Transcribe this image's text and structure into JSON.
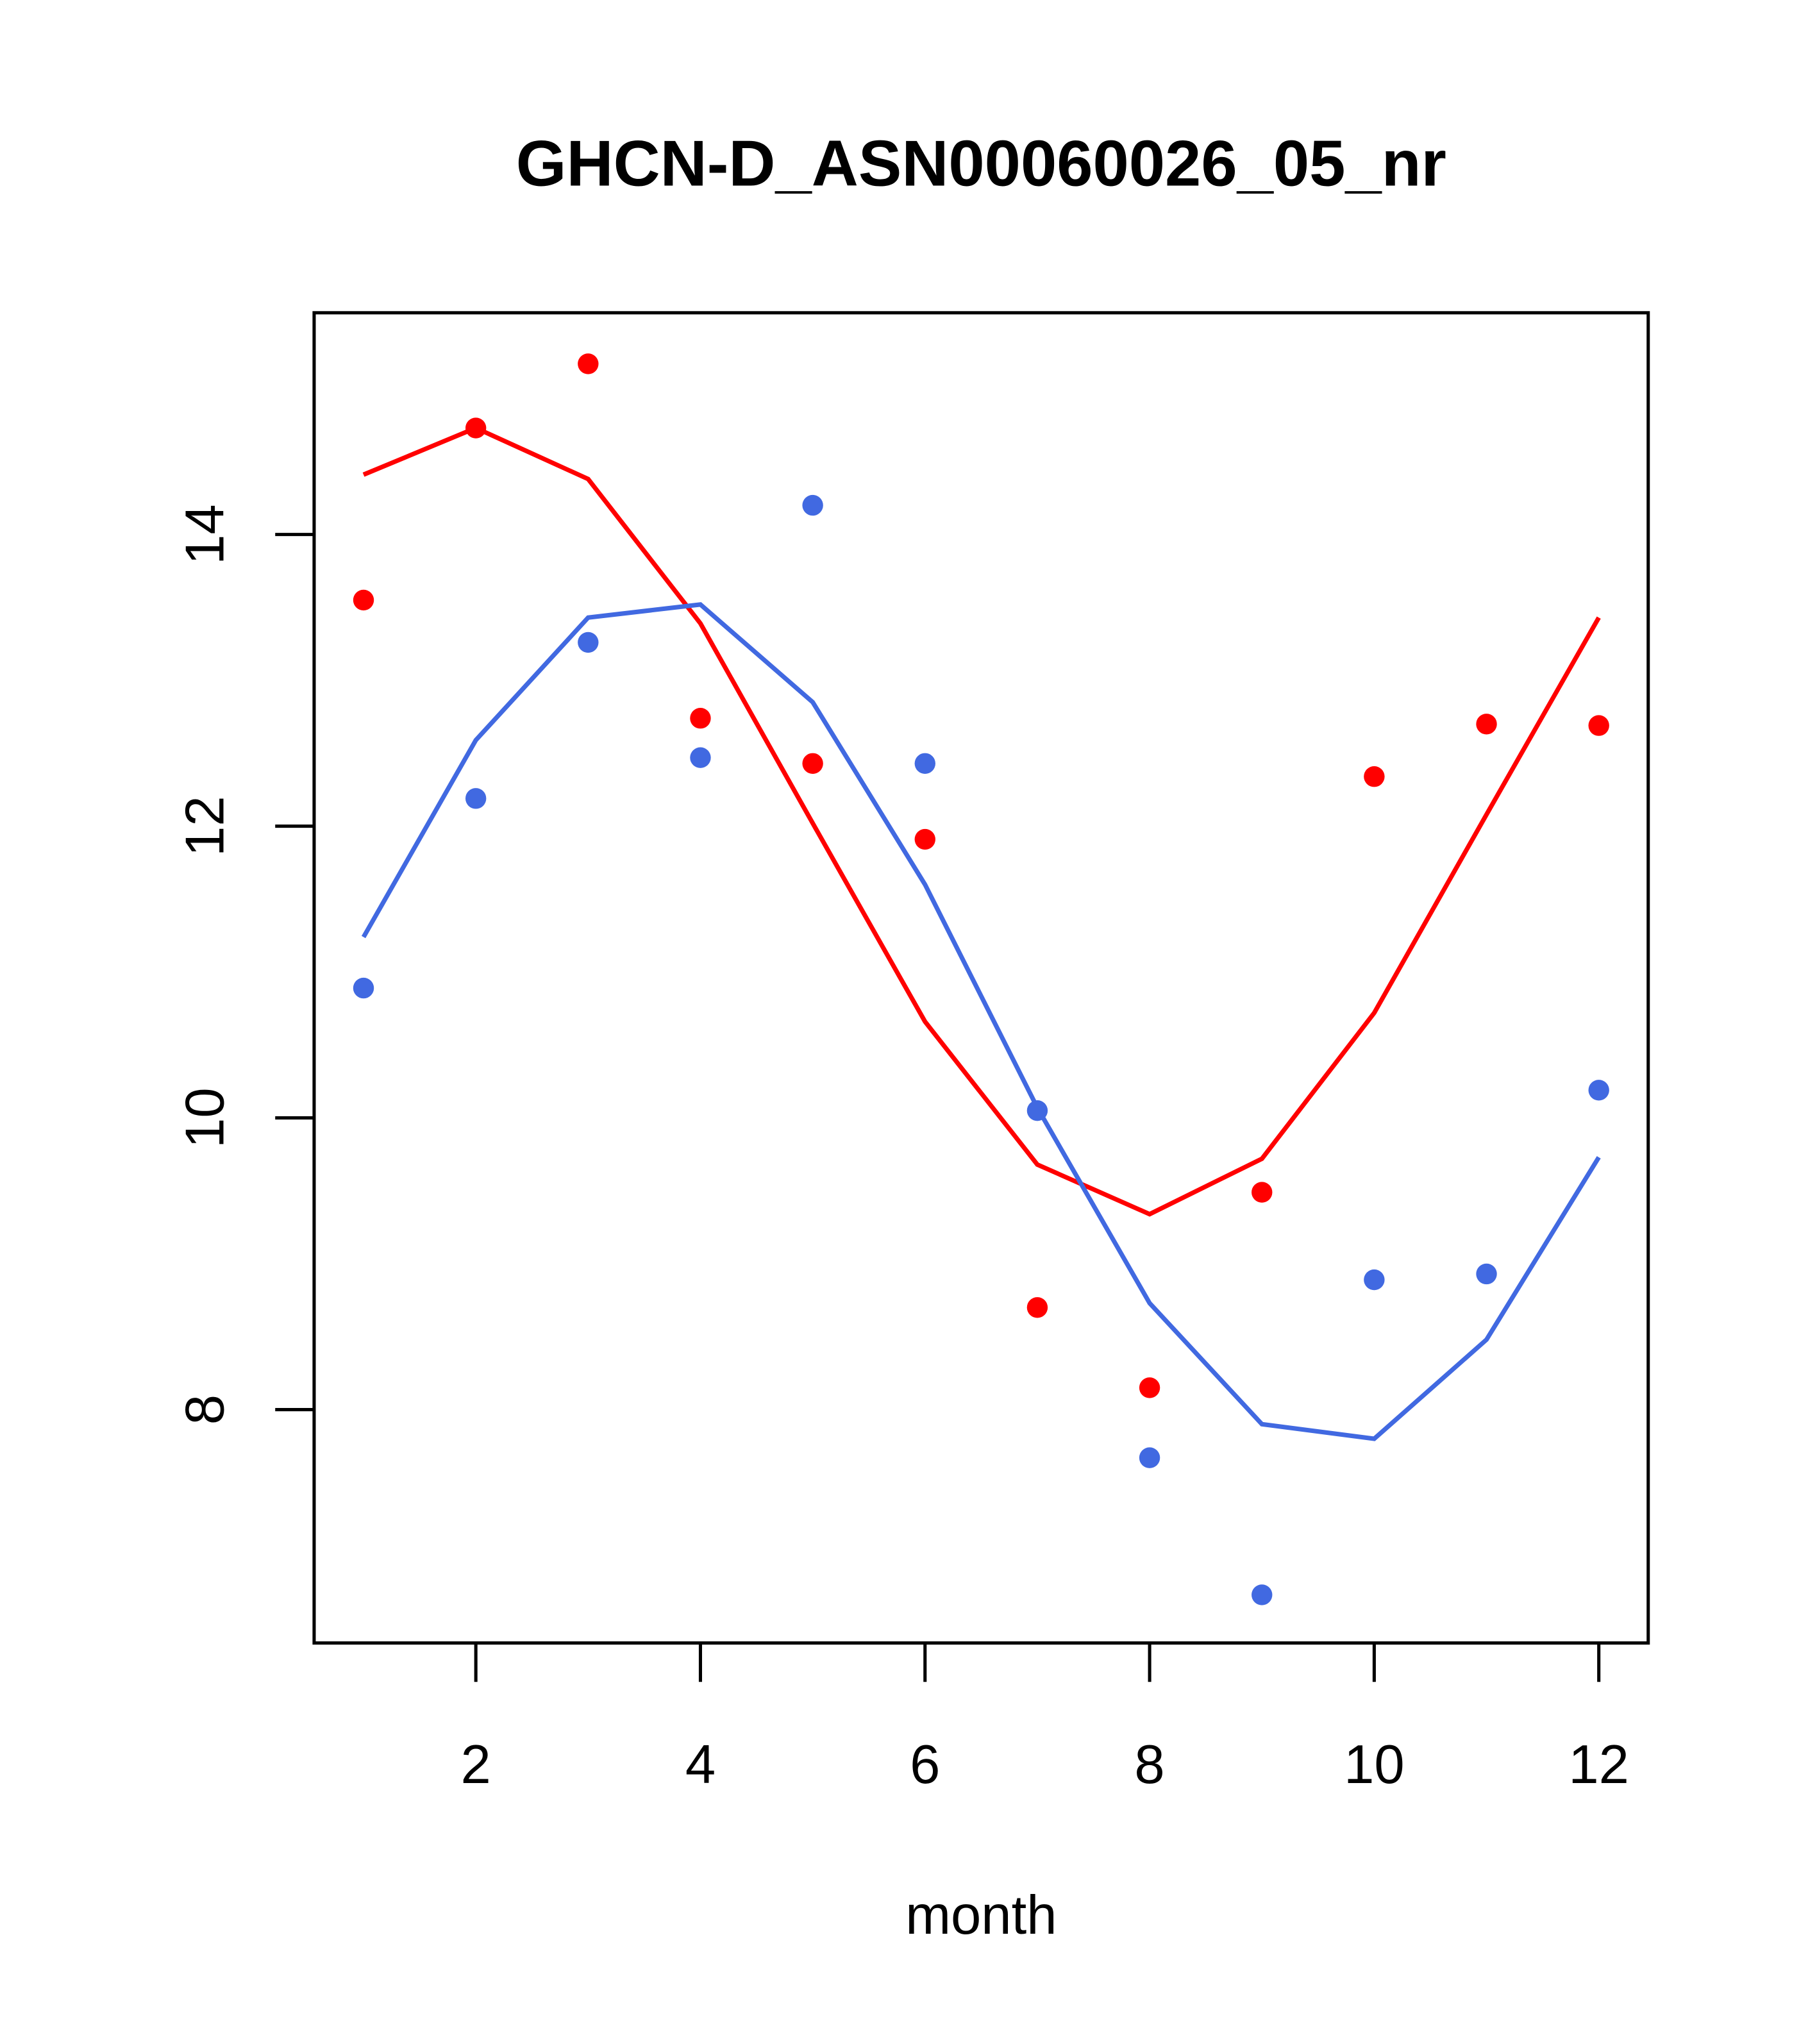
{
  "chart_data": {
    "type": "scatter+line",
    "title": "GHCN-D_ASN00060026_05_nr",
    "xlabel": "month",
    "ylabel": "",
    "xlim": [
      0.56,
      12.44
    ],
    "ylim": [
      6.4,
      15.52
    ],
    "xticks": [
      2,
      4,
      6,
      8,
      10,
      12
    ],
    "yticks": [
      8,
      10,
      12,
      14
    ],
    "grid": false,
    "x": [
      1,
      2,
      3,
      4,
      5,
      6,
      7,
      8,
      9,
      10,
      11,
      12
    ],
    "series": [
      {
        "name": "red points",
        "kind": "points",
        "color": "#ff0000",
        "values": [
          13.55,
          14.73,
          15.17,
          12.74,
          12.43,
          11.91,
          8.7,
          8.15,
          9.49,
          12.34,
          12.7,
          12.69
        ]
      },
      {
        "name": "red line",
        "kind": "line",
        "color": "#ff0000",
        "values": [
          14.41,
          14.73,
          14.38,
          13.39,
          12.02,
          10.66,
          9.68,
          9.34,
          9.72,
          10.72,
          12.08,
          13.43
        ]
      },
      {
        "name": "blue points",
        "kind": "points",
        "color": "#4169e1",
        "values": [
          10.89,
          12.19,
          13.26,
          12.47,
          14.2,
          12.43,
          10.05,
          7.67,
          6.73,
          8.89,
          8.93,
          10.19
        ]
      },
      {
        "name": "blue line",
        "kind": "line",
        "color": "#4169e1",
        "values": [
          11.24,
          12.59,
          13.43,
          13.52,
          12.85,
          11.6,
          10.07,
          8.73,
          7.9,
          7.8,
          8.48,
          9.73
        ]
      }
    ]
  }
}
